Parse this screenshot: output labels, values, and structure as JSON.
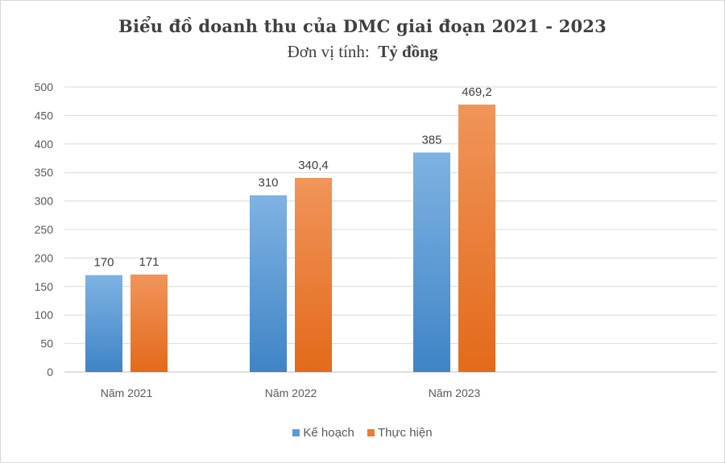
{
  "chart_data": {
    "type": "bar",
    "title": "Biểu đồ doanh thu của DMC giai đoạn 2021 - 2023",
    "subtitle_prefix": "Đơn vị tính:",
    "subtitle_unit": "Tỷ đồng",
    "categories": [
      "Năm 2021",
      "Năm 2022",
      "Năm 2023"
    ],
    "series": [
      {
        "name": "Kế hoạch",
        "values": [
          170,
          310,
          385
        ],
        "labels": [
          "170",
          "310",
          "385"
        ],
        "color": "#5b9bd5"
      },
      {
        "name": "Thực hiện",
        "values": [
          171,
          340.4,
          469.2
        ],
        "labels": [
          "171",
          "340,4",
          "469,2"
        ],
        "color": "#ed7d31"
      }
    ],
    "ylim": [
      0,
      500
    ],
    "yticks": [
      0,
      50,
      100,
      150,
      200,
      250,
      300,
      350,
      400,
      450,
      500
    ],
    "grid": true,
    "legend": "bottom"
  }
}
